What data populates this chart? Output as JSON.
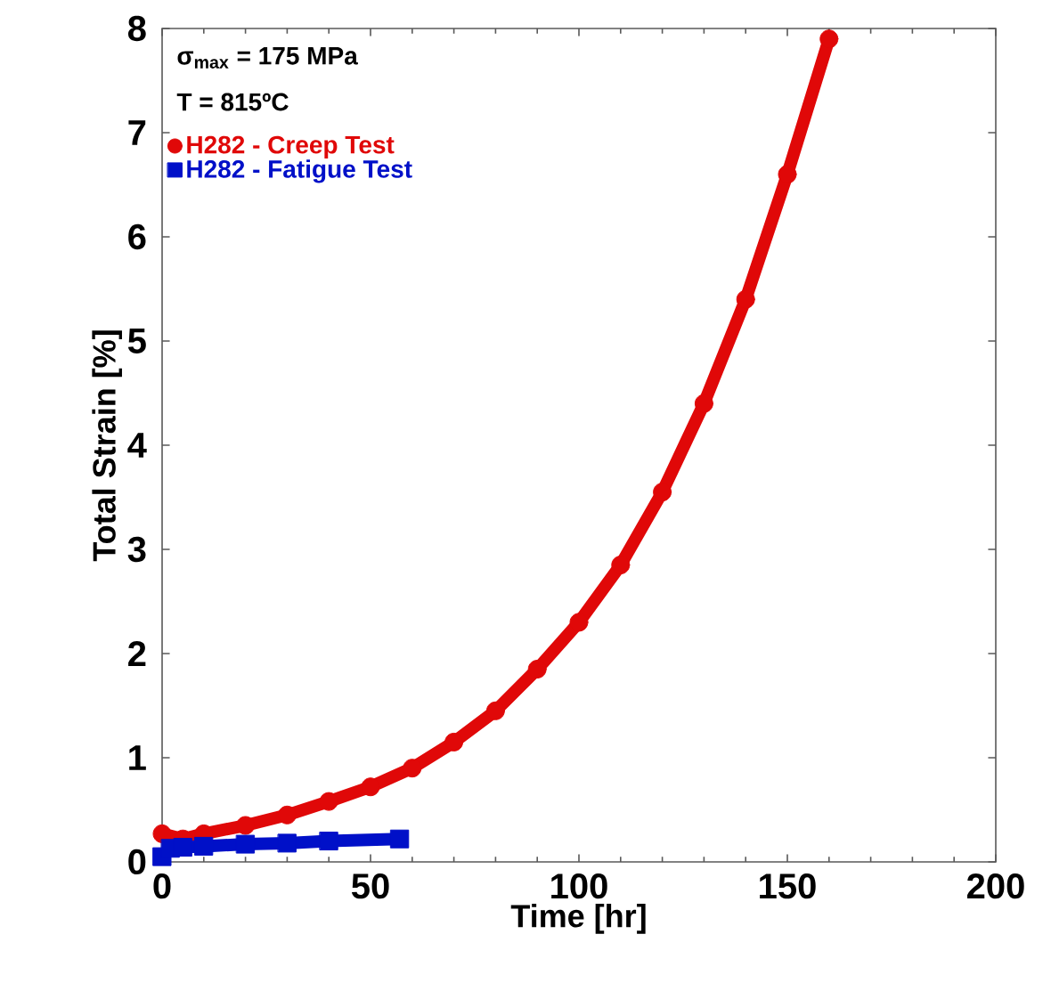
{
  "chart_data": {
    "type": "line",
    "xlabel": "Time [hr]",
    "ylabel": "Total Strain [%]",
    "annotations": [
      "σ$_{max}$ = 175 MPa",
      "T = 815ºC"
    ],
    "xlim": [
      0,
      200
    ],
    "xticks": [
      0,
      50,
      100,
      150,
      200
    ],
    "ylim": [
      0,
      8
    ],
    "yticks": [
      0,
      1,
      2,
      3,
      4,
      5,
      6,
      7,
      8
    ],
    "legend": "top left",
    "grid": false,
    "series": [
      {
        "name": "H282 - Creep Test",
        "color": "#e00808",
        "marker": "circle",
        "x": [
          0,
          5,
          10,
          20,
          30,
          40,
          50,
          60,
          70,
          80,
          90,
          100,
          110,
          120,
          130,
          140,
          150,
          160
        ],
        "values": [
          0.27,
          0.22,
          0.27,
          0.35,
          0.45,
          0.58,
          0.72,
          0.9,
          1.15,
          1.45,
          1.85,
          2.3,
          2.85,
          3.55,
          4.4,
          5.4,
          6.6,
          7.9
        ]
      },
      {
        "name": "H282 - Fatigue Test",
        "color": "#0010c8",
        "marker": "square",
        "x": [
          0,
          2,
          5,
          10,
          20,
          30,
          40,
          57
        ],
        "values": [
          0.05,
          0.13,
          0.14,
          0.15,
          0.17,
          0.18,
          0.2,
          0.22
        ]
      }
    ]
  }
}
